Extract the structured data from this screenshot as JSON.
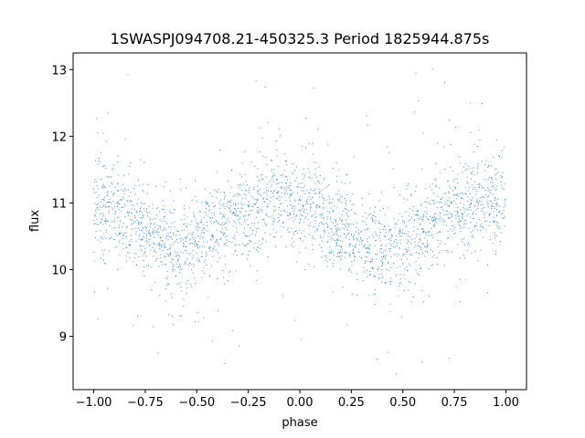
{
  "chart_data": {
    "type": "scatter",
    "title": "1SWASPJ094708.21-450325.3 Period 1825944.875s",
    "xlabel": "phase",
    "ylabel": "flux",
    "xlim": [
      -1.1,
      1.1
    ],
    "ylim": [
      8.2,
      13.25
    ],
    "xticks": [
      -1.0,
      -0.75,
      -0.5,
      -0.25,
      0.0,
      0.25,
      0.5,
      0.75,
      1.0
    ],
    "xtick_labels": [
      "−1.00",
      "−0.75",
      "−0.50",
      "−0.25",
      "0.00",
      "0.25",
      "0.50",
      "0.75",
      "1.00"
    ],
    "yticks": [
      9,
      10,
      11,
      12,
      13
    ],
    "ytick_labels": [
      "9",
      "10",
      "11",
      "12",
      "13"
    ],
    "grid": false,
    "marker_color": "#1f77b4",
    "series": [
      {
        "phase_range": [
          -1.0,
          1.0
        ],
        "profile": [
          [
            -1.0,
            10.95
          ],
          [
            -0.9,
            10.85
          ],
          [
            -0.8,
            10.7
          ],
          [
            -0.7,
            10.45
          ],
          [
            -0.6,
            10.3
          ],
          [
            -0.55,
            10.3
          ],
          [
            -0.5,
            10.4
          ],
          [
            -0.4,
            10.6
          ],
          [
            -0.3,
            10.85
          ],
          [
            -0.2,
            10.95
          ],
          [
            -0.1,
            11.05
          ],
          [
            0.0,
            11.0
          ],
          [
            0.1,
            10.85
          ],
          [
            0.2,
            10.6
          ],
          [
            0.3,
            10.4
          ],
          [
            0.4,
            10.3
          ],
          [
            0.45,
            10.3
          ],
          [
            0.5,
            10.4
          ],
          [
            0.6,
            10.6
          ],
          [
            0.7,
            10.85
          ],
          [
            0.8,
            10.95
          ],
          [
            0.9,
            11.05
          ],
          [
            1.0,
            11.0
          ]
        ],
        "scatter_sigma": 0.35,
        "y_min_observed": 8.4,
        "y_max_observed": 13.05
      }
    ]
  }
}
